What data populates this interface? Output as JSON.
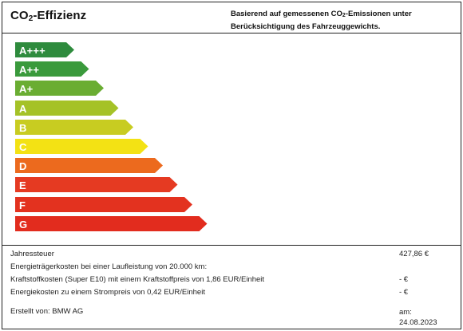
{
  "header": {
    "title_prefix": "CO",
    "title_sub": "2",
    "title_suffix": "-Effizienz",
    "basis_prefix": "Basierend auf gemessenen CO",
    "basis_sub": "2",
    "basis_suffix": "-Emissionen unter Berücksichtigung des Fahrzeuggewichts."
  },
  "efficiency_classes": [
    {
      "label": "A+++",
      "color": "#2e8b3d"
    },
    {
      "label": "A++",
      "color": "#3a9a3c"
    },
    {
      "label": "A+",
      "color": "#6aad32"
    },
    {
      "label": "A",
      "color": "#a5c227"
    },
    {
      "label": "B",
      "color": "#c8cc21"
    },
    {
      "label": "C",
      "color": "#f3e214"
    },
    {
      "label": "D",
      "color": "#ec6a1e"
    },
    {
      "label": "E",
      "color": "#e53a22"
    },
    {
      "label": "F",
      "color": "#e3321f"
    },
    {
      "label": "G",
      "color": "#e22c1e"
    }
  ],
  "costs": [
    {
      "label": "Jahressteuer",
      "value": "427,86 €"
    },
    {
      "label": "Energieträgerkosten bei einer Laufleistung von 20.000 km:",
      "value": ""
    },
    {
      "label": "Kraftstoffkosten (Super E10) mit einem Kraftstoffpreis von 1,86 EUR/Einheit",
      "value": "- €"
    },
    {
      "label": "Energiekosten zu einem Strompreis von 0,42 EUR/Einheit",
      "value": "- €"
    }
  ],
  "footer": {
    "created_by": "Erstellt von: BMW AG",
    "created_on_label": "am:",
    "created_on_date": "24.08.2023"
  }
}
